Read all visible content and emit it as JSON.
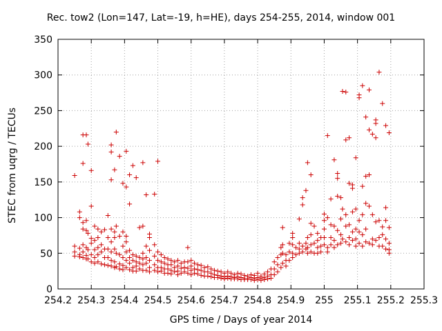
{
  "chart_data": {
    "type": "scatter",
    "title": "Rec. tow2 (Lon=147, Lat=-19, h=HE), days 254-255, 2014, window 001",
    "xlabel": "GPS time / Days of year 2014",
    "ylabel": "STEC from uqrg / TECUs",
    "xlim": [
      254.2,
      255.3
    ],
    "ylim": [
      0,
      350
    ],
    "xticks": [
      "254.2",
      "254.3",
      "254.4",
      "254.5",
      "254.6",
      "254.7",
      "254.8",
      "254.9",
      "255",
      "255.1",
      "255.2",
      "255.3"
    ],
    "yticks": [
      "0",
      "50",
      "100",
      "150",
      "200",
      "250",
      "300",
      "350"
    ],
    "grid": true,
    "marker": "plus",
    "color": "#cc0000",
    "points": [
      [
        254.25,
        159
      ],
      [
        254.25,
        60
      ],
      [
        254.25,
        52
      ],
      [
        254.25,
        46
      ],
      [
        254.265,
        108
      ],
      [
        254.265,
        100
      ],
      [
        254.265,
        57
      ],
      [
        254.265,
        48
      ],
      [
        254.265,
        45
      ],
      [
        254.275,
        216
      ],
      [
        254.275,
        176
      ],
      [
        254.275,
        93
      ],
      [
        254.275,
        84
      ],
      [
        254.275,
        62
      ],
      [
        254.275,
        52
      ],
      [
        254.275,
        44
      ],
      [
        254.285,
        216
      ],
      [
        254.285,
        96
      ],
      [
        254.285,
        82
      ],
      [
        254.285,
        58
      ],
      [
        254.285,
        47
      ],
      [
        254.285,
        42
      ],
      [
        254.29,
        203
      ],
      [
        254.29,
        78
      ],
      [
        254.29,
        55
      ],
      [
        254.29,
        42
      ],
      [
        254.3,
        166
      ],
      [
        254.3,
        116
      ],
      [
        254.3,
        71
      ],
      [
        254.3,
        64
      ],
      [
        254.3,
        48
      ],
      [
        254.3,
        38
      ],
      [
        254.31,
        88
      ],
      [
        254.31,
        68
      ],
      [
        254.31,
        55
      ],
      [
        254.31,
        44
      ],
      [
        254.31,
        36
      ],
      [
        254.32,
        84
      ],
      [
        254.32,
        72
      ],
      [
        254.32,
        58
      ],
      [
        254.32,
        48
      ],
      [
        254.32,
        38
      ],
      [
        254.33,
        80
      ],
      [
        254.33,
        62
      ],
      [
        254.33,
        52
      ],
      [
        254.33,
        35
      ],
      [
        254.34,
        83
      ],
      [
        254.34,
        56
      ],
      [
        254.34,
        44
      ],
      [
        254.34,
        34
      ],
      [
        254.35,
        103
      ],
      [
        254.35,
        72
      ],
      [
        254.35,
        56
      ],
      [
        254.35,
        44
      ],
      [
        254.35,
        33
      ],
      [
        254.36,
        202
      ],
      [
        254.36,
        192
      ],
      [
        254.36,
        153
      ],
      [
        254.36,
        84
      ],
      [
        254.36,
        66
      ],
      [
        254.36,
        52
      ],
      [
        254.36,
        40
      ],
      [
        254.36,
        32
      ],
      [
        254.37,
        167
      ],
      [
        254.37,
        80
      ],
      [
        254.37,
        72
      ],
      [
        254.37,
        56
      ],
      [
        254.37,
        38
      ],
      [
        254.37,
        30
      ],
      [
        254.375,
        220
      ],
      [
        254.375,
        88
      ],
      [
        254.375,
        50
      ],
      [
        254.375,
        31
      ],
      [
        254.385,
        186
      ],
      [
        254.385,
        74
      ],
      [
        254.385,
        48
      ],
      [
        254.385,
        35
      ],
      [
        254.385,
        28
      ],
      [
        254.395,
        148
      ],
      [
        254.395,
        80
      ],
      [
        254.395,
        60
      ],
      [
        254.395,
        44
      ],
      [
        254.395,
        33
      ],
      [
        254.395,
        27
      ],
      [
        254.405,
        193
      ],
      [
        254.405,
        143
      ],
      [
        254.405,
        66
      ],
      [
        254.405,
        74
      ],
      [
        254.405,
        52
      ],
      [
        254.405,
        40
      ],
      [
        254.405,
        30
      ],
      [
        254.415,
        160
      ],
      [
        254.415,
        119
      ],
      [
        254.415,
        54
      ],
      [
        254.415,
        44
      ],
      [
        254.415,
        36
      ],
      [
        254.415,
        27
      ],
      [
        254.425,
        173
      ],
      [
        254.425,
        48
      ],
      [
        254.425,
        40
      ],
      [
        254.425,
        30
      ],
      [
        254.425,
        25
      ],
      [
        254.435,
        156
      ],
      [
        254.435,
        46
      ],
      [
        254.435,
        38
      ],
      [
        254.435,
        32
      ],
      [
        254.435,
        25
      ],
      [
        254.445,
        86
      ],
      [
        254.445,
        44
      ],
      [
        254.445,
        36
      ],
      [
        254.445,
        28
      ],
      [
        254.455,
        177
      ],
      [
        254.455,
        88
      ],
      [
        254.455,
        50
      ],
      [
        254.455,
        42
      ],
      [
        254.455,
        34
      ],
      [
        254.455,
        26
      ],
      [
        254.465,
        132
      ],
      [
        254.465,
        60
      ],
      [
        254.465,
        44
      ],
      [
        254.465,
        36
      ],
      [
        254.465,
        26
      ],
      [
        254.475,
        77
      ],
      [
        254.475,
        72
      ],
      [
        254.475,
        54
      ],
      [
        254.475,
        40
      ],
      [
        254.475,
        30
      ],
      [
        254.475,
        24
      ],
      [
        254.49,
        133
      ],
      [
        254.49,
        62
      ],
      [
        254.49,
        46
      ],
      [
        254.49,
        34
      ],
      [
        254.49,
        26
      ],
      [
        254.5,
        179
      ],
      [
        254.5,
        52
      ],
      [
        254.5,
        40
      ],
      [
        254.5,
        30
      ],
      [
        254.5,
        24
      ],
      [
        254.51,
        48
      ],
      [
        254.51,
        38
      ],
      [
        254.51,
        30
      ],
      [
        254.51,
        25
      ],
      [
        254.52,
        44
      ],
      [
        254.52,
        36
      ],
      [
        254.52,
        28
      ],
      [
        254.52,
        22
      ],
      [
        254.53,
        42
      ],
      [
        254.53,
        34
      ],
      [
        254.53,
        28
      ],
      [
        254.53,
        22
      ],
      [
        254.54,
        40
      ],
      [
        254.54,
        34
      ],
      [
        254.54,
        26
      ],
      [
        254.54,
        21
      ],
      [
        254.55,
        38
      ],
      [
        254.55,
        30
      ],
      [
        254.55,
        24
      ],
      [
        254.56,
        40
      ],
      [
        254.56,
        32
      ],
      [
        254.56,
        25
      ],
      [
        254.56,
        20
      ],
      [
        254.57,
        36
      ],
      [
        254.57,
        29
      ],
      [
        254.57,
        22
      ],
      [
        254.58,
        38
      ],
      [
        254.58,
        30
      ],
      [
        254.58,
        24
      ],
      [
        254.59,
        58
      ],
      [
        254.59,
        38
      ],
      [
        254.59,
        29
      ],
      [
        254.59,
        22
      ],
      [
        254.6,
        40
      ],
      [
        254.6,
        32
      ],
      [
        254.6,
        26
      ],
      [
        254.6,
        20
      ],
      [
        254.61,
        36
      ],
      [
        254.61,
        28
      ],
      [
        254.61,
        22
      ],
      [
        254.62,
        34
      ],
      [
        254.62,
        27
      ],
      [
        254.62,
        21
      ],
      [
        254.63,
        33
      ],
      [
        254.63,
        26
      ],
      [
        254.63,
        19
      ],
      [
        254.64,
        30
      ],
      [
        254.64,
        24
      ],
      [
        254.64,
        18
      ],
      [
        254.65,
        31
      ],
      [
        254.65,
        24
      ],
      [
        254.65,
        18
      ],
      [
        254.66,
        28
      ],
      [
        254.66,
        22
      ],
      [
        254.66,
        17
      ],
      [
        254.67,
        26
      ],
      [
        254.67,
        20
      ],
      [
        254.67,
        16
      ],
      [
        254.68,
        25
      ],
      [
        254.68,
        19
      ],
      [
        254.68,
        16
      ],
      [
        254.69,
        24
      ],
      [
        254.69,
        18
      ],
      [
        254.69,
        15
      ],
      [
        254.7,
        22
      ],
      [
        254.7,
        17
      ],
      [
        254.7,
        14
      ],
      [
        254.71,
        24
      ],
      [
        254.71,
        18
      ],
      [
        254.71,
        15
      ],
      [
        254.72,
        22
      ],
      [
        254.72,
        17
      ],
      [
        254.72,
        14
      ],
      [
        254.73,
        20
      ],
      [
        254.73,
        16
      ],
      [
        254.73,
        14
      ],
      [
        254.74,
        22
      ],
      [
        254.74,
        17
      ],
      [
        254.74,
        14
      ],
      [
        254.75,
        21
      ],
      [
        254.75,
        16
      ],
      [
        254.75,
        13
      ],
      [
        254.76,
        19
      ],
      [
        254.76,
        15
      ],
      [
        254.76,
        13
      ],
      [
        254.77,
        18
      ],
      [
        254.77,
        15
      ],
      [
        254.77,
        13
      ],
      [
        254.78,
        20
      ],
      [
        254.78,
        16
      ],
      [
        254.78,
        13
      ],
      [
        254.79,
        19
      ],
      [
        254.79,
        15
      ],
      [
        254.79,
        12
      ],
      [
        254.8,
        22
      ],
      [
        254.8,
        16
      ],
      [
        254.8,
        13
      ],
      [
        254.81,
        18
      ],
      [
        254.81,
        15
      ],
      [
        254.81,
        12
      ],
      [
        254.82,
        21
      ],
      [
        254.82,
        16
      ],
      [
        254.82,
        13
      ],
      [
        254.83,
        24
      ],
      [
        254.83,
        18
      ],
      [
        254.83,
        14
      ],
      [
        254.84,
        28
      ],
      [
        254.84,
        20
      ],
      [
        254.84,
        15
      ],
      [
        254.85,
        38
      ],
      [
        254.85,
        28
      ],
      [
        254.85,
        20
      ],
      [
        254.86,
        44
      ],
      [
        254.86,
        34
      ],
      [
        254.86,
        24
      ],
      [
        254.87,
        58
      ],
      [
        254.87,
        48
      ],
      [
        254.87,
        30
      ],
      [
        254.875,
        86
      ],
      [
        254.875,
        62
      ],
      [
        254.875,
        50
      ],
      [
        254.875,
        36
      ],
      [
        254.885,
        48
      ],
      [
        254.885,
        40
      ],
      [
        254.885,
        32
      ],
      [
        254.895,
        64
      ],
      [
        254.895,
        52
      ],
      [
        254.895,
        40
      ],
      [
        254.905,
        78
      ],
      [
        254.905,
        72
      ],
      [
        254.905,
        62
      ],
      [
        254.905,
        50
      ],
      [
        254.905,
        44
      ],
      [
        254.915,
        58
      ],
      [
        254.915,
        48
      ],
      [
        254.925,
        98
      ],
      [
        254.925,
        64
      ],
      [
        254.925,
        56
      ],
      [
        254.925,
        50
      ],
      [
        254.935,
        128
      ],
      [
        254.935,
        118
      ],
      [
        254.935,
        60
      ],
      [
        254.935,
        52
      ],
      [
        254.945,
        138
      ],
      [
        254.945,
        64
      ],
      [
        254.945,
        56
      ],
      [
        254.95,
        177
      ],
      [
        254.95,
        72
      ],
      [
        254.95,
        58
      ],
      [
        254.95,
        50
      ],
      [
        254.96,
        160
      ],
      [
        254.96,
        92
      ],
      [
        254.96,
        76
      ],
      [
        254.96,
        62
      ],
      [
        254.96,
        52
      ],
      [
        254.97,
        88
      ],
      [
        254.97,
        64
      ],
      [
        254.97,
        50
      ],
      [
        254.98,
        78
      ],
      [
        254.98,
        68
      ],
      [
        254.98,
        58
      ],
      [
        254.98,
        50
      ],
      [
        254.99,
        72
      ],
      [
        254.99,
        60
      ],
      [
        254.99,
        52
      ],
      [
        255.0,
        105
      ],
      [
        255.0,
        96
      ],
      [
        255.0,
        84
      ],
      [
        255.0,
        72
      ],
      [
        255.0,
        62
      ],
      [
        255.01,
        215
      ],
      [
        255.01,
        100
      ],
      [
        255.01,
        58
      ],
      [
        255.01,
        52
      ],
      [
        255.02,
        126
      ],
      [
        255.02,
        90
      ],
      [
        255.02,
        72
      ],
      [
        255.02,
        62
      ],
      [
        255.03,
        181
      ],
      [
        255.03,
        88
      ],
      [
        255.03,
        68
      ],
      [
        255.03,
        58
      ],
      [
        255.04,
        162
      ],
      [
        255.04,
        155
      ],
      [
        255.04,
        130
      ],
      [
        255.04,
        82
      ],
      [
        255.04,
        62
      ],
      [
        255.05,
        128
      ],
      [
        255.05,
        98
      ],
      [
        255.05,
        76
      ],
      [
        255.05,
        64
      ],
      [
        255.055,
        277
      ],
      [
        255.055,
        112
      ],
      [
        255.055,
        70
      ],
      [
        255.065,
        276
      ],
      [
        255.065,
        209
      ],
      [
        255.065,
        104
      ],
      [
        255.065,
        88
      ],
      [
        255.065,
        66
      ],
      [
        255.075,
        212
      ],
      [
        255.075,
        148
      ],
      [
        255.075,
        90
      ],
      [
        255.075,
        72
      ],
      [
        255.075,
        62
      ],
      [
        255.085,
        141
      ],
      [
        255.085,
        146
      ],
      [
        255.085,
        108
      ],
      [
        255.085,
        80
      ],
      [
        255.085,
        68
      ],
      [
        255.095,
        184
      ],
      [
        255.095,
        112
      ],
      [
        255.095,
        84
      ],
      [
        255.095,
        70
      ],
      [
        255.095,
        60
      ],
      [
        255.105,
        272
      ],
      [
        255.105,
        268
      ],
      [
        255.105,
        96
      ],
      [
        255.105,
        80
      ],
      [
        255.105,
        64
      ],
      [
        255.115,
        285
      ],
      [
        255.115,
        144
      ],
      [
        255.115,
        104
      ],
      [
        255.115,
        76
      ],
      [
        255.115,
        60
      ],
      [
        255.125,
        241
      ],
      [
        255.125,
        158
      ],
      [
        255.125,
        120
      ],
      [
        255.125,
        84
      ],
      [
        255.125,
        66
      ],
      [
        255.135,
        279
      ],
      [
        255.135,
        223
      ],
      [
        255.135,
        160
      ],
      [
        255.135,
        116
      ],
      [
        255.135,
        64
      ],
      [
        255.145,
        217
      ],
      [
        255.145,
        104
      ],
      [
        255.145,
        70
      ],
      [
        255.145,
        62
      ],
      [
        255.155,
        237
      ],
      [
        255.155,
        232
      ],
      [
        255.155,
        212
      ],
      [
        255.155,
        94
      ],
      [
        255.155,
        68
      ],
      [
        255.165,
        304
      ],
      [
        255.165,
        96
      ],
      [
        255.165,
        72
      ],
      [
        255.165,
        60
      ],
      [
        255.175,
        260
      ],
      [
        255.175,
        87
      ],
      [
        255.175,
        76
      ],
      [
        255.175,
        60
      ],
      [
        255.185,
        229
      ],
      [
        255.185,
        114
      ],
      [
        255.185,
        96
      ],
      [
        255.185,
        70
      ],
      [
        255.185,
        56
      ],
      [
        255.195,
        219
      ],
      [
        255.195,
        86
      ],
      [
        255.195,
        64
      ],
      [
        255.195,
        55
      ],
      [
        255.195,
        50
      ]
    ]
  }
}
